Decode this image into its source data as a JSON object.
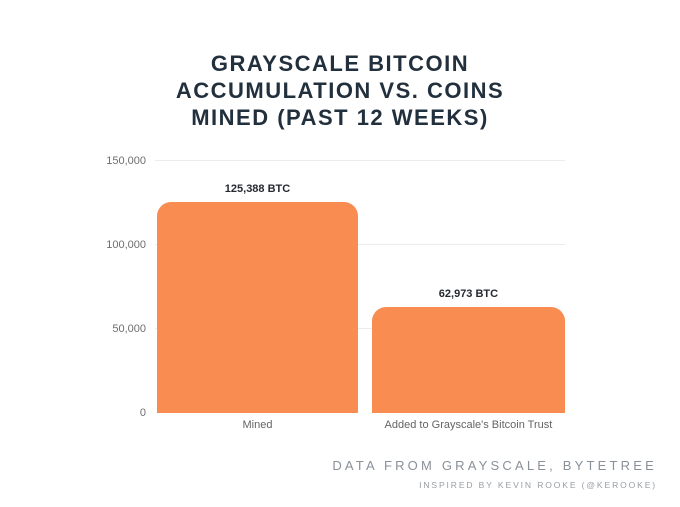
{
  "title": {
    "line1": "GRAYSCALE BITCOIN",
    "line2": "ACCUMULATION VS. COINS",
    "line3": "MINED (PAST 12 WEEKS)"
  },
  "chart_data": {
    "type": "bar",
    "title": "GRAYSCALE BITCOIN ACCUMULATION VS. COINS MINED (PAST 12 WEEKS)",
    "categories": [
      "Mined",
      "Added to Grayscale's Bitcoin Trust"
    ],
    "values": [
      125388,
      62973
    ],
    "value_labels": [
      "125,388 BTC",
      "62,973 BTC"
    ],
    "xlabel": "",
    "ylabel": "",
    "ylim": [
      0,
      150000
    ],
    "yticks": [
      0,
      50000,
      100000,
      150000
    ],
    "ytick_labels": [
      "0",
      "50,000",
      "100,000",
      "150,000"
    ],
    "grid": true,
    "legend_position": "none",
    "bar_color": "#F88C51"
  },
  "footer": {
    "line1": "DATA FROM GRAYSCALE, BYTETREE",
    "line2": "INSPIRED BY KEVIN ROOKE (@KEROOKE)"
  },
  "colors": {
    "background": "#FFFFFF",
    "accent_bar": "#F88C51",
    "title_text": "#22303E",
    "value_label_text": "#242A31",
    "axis_text": "#6E6E6E",
    "category_text": "#646464",
    "gridline": "#ECECEC",
    "footer_text": "#8A9098"
  }
}
